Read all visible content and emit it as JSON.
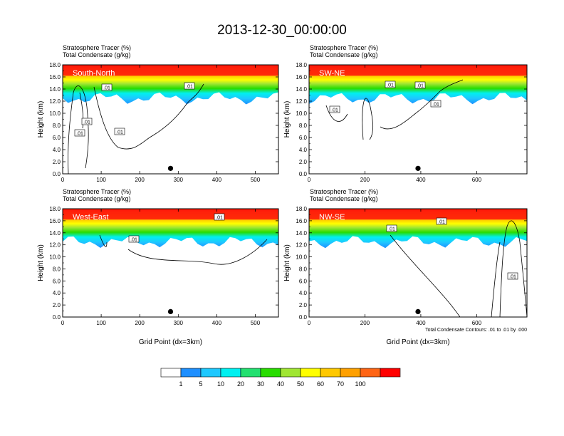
{
  "title": "2013-12-30_00:00:00",
  "panel_subtitle": {
    "line1": "Stratosphere Tracer   (%)",
    "line2": "Total Condensate   (g/kg)"
  },
  "ylabel": "Height (km)",
  "xlabel": "Grid Point (dx=3km)",
  "contour_note": "Total Condensate Contours: .01 to .01 by .000",
  "colorbar": {
    "colors": [
      "#ffffff",
      "#1e8fff",
      "#1ec8ff",
      "#00f0f0",
      "#22e070",
      "#28dc00",
      "#a0e632",
      "#ffff00",
      "#ffc800",
      "#ffa000",
      "#ff6414",
      "#ff0000"
    ],
    "labels": [
      "1",
      "5",
      "10",
      "20",
      "30",
      "40",
      "50",
      "60",
      "70",
      "100"
    ]
  },
  "chart_data": [
    {
      "type": "heatmap",
      "panel_label": "South-North",
      "xlim": [
        0,
        560
      ],
      "xticks": [
        0,
        100,
        200,
        300,
        400,
        500
      ],
      "ylim": [
        0,
        18
      ],
      "yticks": [
        "0.0",
        "2.0",
        "4.0",
        "6.0",
        "8.0",
        "10.0",
        "12.0",
        "14.0",
        "16.0",
        "18.0"
      ],
      "marker_x": 280,
      "contour_labels": [
        ".01",
        ".01",
        ".01",
        ".01",
        ".01"
      ]
    },
    {
      "type": "heatmap",
      "panel_label": "SW-NE",
      "xlim": [
        0,
        780
      ],
      "xticks": [
        0,
        200,
        400,
        600
      ],
      "ylim": [
        0,
        18
      ],
      "yticks": [
        "0.0",
        "2.0",
        "4.0",
        "6.0",
        "8.0",
        "10.0",
        "12.0",
        "14.0",
        "16.0",
        "18.0"
      ],
      "marker_x": 390,
      "contour_labels": [
        ".01",
        ".01",
        ".01",
        ".01"
      ]
    },
    {
      "type": "heatmap",
      "panel_label": "West-East",
      "xlim": [
        0,
        560
      ],
      "xticks": [
        0,
        100,
        200,
        300,
        400,
        500
      ],
      "ylim": [
        0,
        18
      ],
      "yticks": [
        "0.0",
        "2.0",
        "4.0",
        "6.0",
        "8.0",
        "10.0",
        "12.0",
        "14.0",
        "16.0",
        "18.0"
      ],
      "marker_x": 280,
      "contour_labels": [
        ".01",
        ".01"
      ]
    },
    {
      "type": "heatmap",
      "panel_label": "NW-SE",
      "xlim": [
        0,
        780
      ],
      "xticks": [
        0,
        200,
        400,
        600
      ],
      "ylim": [
        0,
        18
      ],
      "yticks": [
        "0.0",
        "2.0",
        "4.0",
        "6.0",
        "8.0",
        "10.0",
        "12.0",
        "14.0",
        "16.0",
        "18.0"
      ],
      "marker_x": 390,
      "contour_labels": [
        ".01",
        ".01",
        ".01"
      ]
    }
  ]
}
